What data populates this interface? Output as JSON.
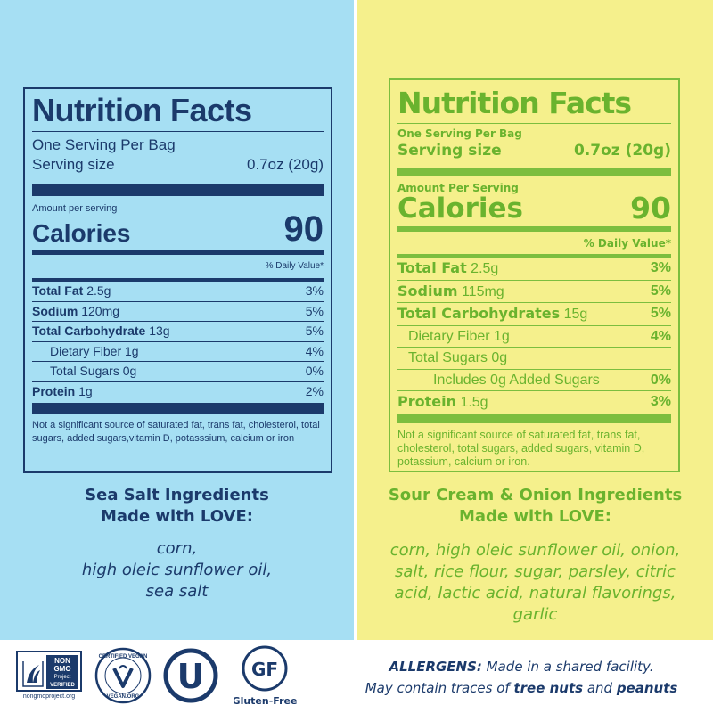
{
  "left": {
    "title": "Nutrition Facts",
    "servings_per": "One Serving Per Bag",
    "serving_size_label": "Serving size",
    "serving_size_value": "0.7oz (20g)",
    "amount_per": "Amount per serving",
    "calories_label": "Calories",
    "calories_value": "90",
    "daily_value_header": "% Daily Value*",
    "rows": [
      {
        "label": "Total Fat",
        "amount": "2.5g",
        "pct": "3%"
      },
      {
        "label": "Sodium",
        "amount": "120mg",
        "pct": "5%"
      },
      {
        "label": "Total Carbohydrate",
        "amount": "13g",
        "pct": "5%"
      },
      {
        "label": "Dietary Fiber 1g",
        "amount": "",
        "pct": "4%"
      },
      {
        "label": "Total Sugars 0g",
        "amount": "",
        "pct": "0%"
      },
      {
        "label": "Protein",
        "amount": "1g",
        "pct": "2%"
      }
    ],
    "footnote": "Not a significant source of saturated fat, trans fat, cholesterol, total sugars, added sugars,vitamin D, potasssium, calcium or iron",
    "ingredients_heading_1": "Sea Salt Ingredients",
    "ingredients_heading_2": "Made with LOVE:",
    "ingredients_line_1": "corn,",
    "ingredients_line_2": "high oleic sunflower oil,",
    "ingredients_line_3": "sea salt"
  },
  "right": {
    "title": "Nutrition Facts",
    "servings_per": "One Serving Per Bag",
    "serving_size_label": "Serving size",
    "serving_size_value": "0.7oz (20g)",
    "amount_per": "Amount Per Serving",
    "calories_label": "Calories",
    "calories_value": "90",
    "daily_value_header": "% Daily Value*",
    "rows": [
      {
        "label": "Total Fat",
        "amount": "2.5g",
        "pct": "3%"
      },
      {
        "label": "Sodium",
        "amount": "115mg",
        "pct": "5%"
      },
      {
        "label": "Total Carbohydrates",
        "amount": "15g",
        "pct": "5%"
      },
      {
        "label": "Dietary Fiber 1g",
        "amount": "",
        "pct": "4%"
      },
      {
        "label": "Total Sugars 0g",
        "amount": "",
        "pct": ""
      },
      {
        "label": "Includes 0g Added Sugars",
        "amount": "",
        "pct": "0%"
      },
      {
        "label": "Protein",
        "amount": "1.5g",
        "pct": "3%"
      }
    ],
    "footnote": "Not a significant source of saturated fat, trans fat, cholesterol, total sugars, added sugars, vitamin D, potassium, calcium or iron.",
    "ingredients_heading_1": "Sour Cream & Onion Ingredients",
    "ingredients_heading_2": "Made with LOVE:",
    "ingredients_line_1": "corn, high oleic sunflower oil, onion,",
    "ingredients_line_2": "salt, rice flour, sugar, parsley, citric",
    "ingredients_line_3": "acid, lactic acid, natural flavorings,",
    "ingredients_line_4": "garlic"
  },
  "badges": {
    "nongmo_line1": "NON",
    "nongmo_line2": "GMO",
    "nongmo_line3": "Project",
    "nongmo_line4": "VERIFIED",
    "nongmo_url": "nongmoproject.org",
    "vegan_top": "CERTIFIED VEGAN",
    "vegan_bottom": "VEGAN.ORG",
    "kosher_letter": "U",
    "gf_letters": "GF",
    "gf_label": "Gluten-Free"
  },
  "allergen": {
    "label": "ALLERGENS:",
    "line1_rest": " Made in a shared facility.",
    "line2_start": "May contain traces of ",
    "nut1": "tree nuts",
    "conj": " and ",
    "nut2": "peanuts"
  },
  "colors": {
    "navy": "#1b3a6b",
    "green": "#6ab32e",
    "left_bg": "#a6dff3",
    "right_bg": "#f5f08c"
  }
}
